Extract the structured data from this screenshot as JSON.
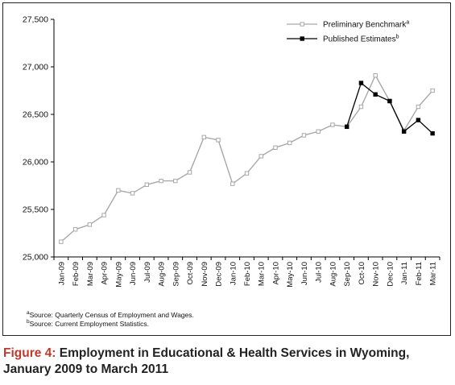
{
  "chart_data": {
    "type": "line",
    "categories": [
      "Jan-09",
      "Feb-09",
      "Mar-09",
      "Apr-09",
      "May-09",
      "Jun-09",
      "Jul-09",
      "Aug-09",
      "Sep-09",
      "Oct-09",
      "Nov-09",
      "Dec-09",
      "Jan-10",
      "Feb-10",
      "Mar-10",
      "Apr-10",
      "May-10",
      "Jun-10",
      "Jul-10",
      "Aug-10",
      "Sep-10",
      "Oct-10",
      "Nov-10",
      "Dec-10",
      "Jan-11",
      "Feb-11",
      "Mar-11"
    ],
    "series": [
      {
        "name": "Preliminary Benchmark",
        "name_sup": "a",
        "color": "#a8a8a8",
        "values": [
          25160,
          25290,
          25340,
          25440,
          25700,
          25670,
          25760,
          25800,
          25800,
          25890,
          26260,
          26230,
          25770,
          25880,
          26060,
          26150,
          26200,
          26280,
          26320,
          26390,
          26370,
          26580,
          26910,
          26640,
          26330,
          26580,
          26750
        ]
      },
      {
        "name": "Published Estimates",
        "name_sup": "b",
        "color": "#000000",
        "values": [
          null,
          null,
          null,
          null,
          null,
          null,
          null,
          null,
          null,
          null,
          null,
          null,
          null,
          null,
          null,
          null,
          null,
          null,
          null,
          null,
          26370,
          26830,
          26710,
          26640,
          26320,
          26440,
          26300
        ]
      }
    ],
    "yticks": [
      "25,000",
      "25,500",
      "26,000",
      "26,500",
      "27,000",
      "27,500"
    ],
    "ylim": [
      25000,
      27500
    ],
    "legend_position": "top-right",
    "grid": false
  },
  "footnotes": [
    {
      "sup": "a",
      "text": "Source: Quarterly Census of Employment and Wages."
    },
    {
      "sup": "b",
      "text": "Source: Current Employment Statistics."
    }
  ],
  "caption": {
    "label": "Figure 4:",
    "text": " Employment in Educational & Health Services in Wyoming, January 2009 to March 2011"
  }
}
